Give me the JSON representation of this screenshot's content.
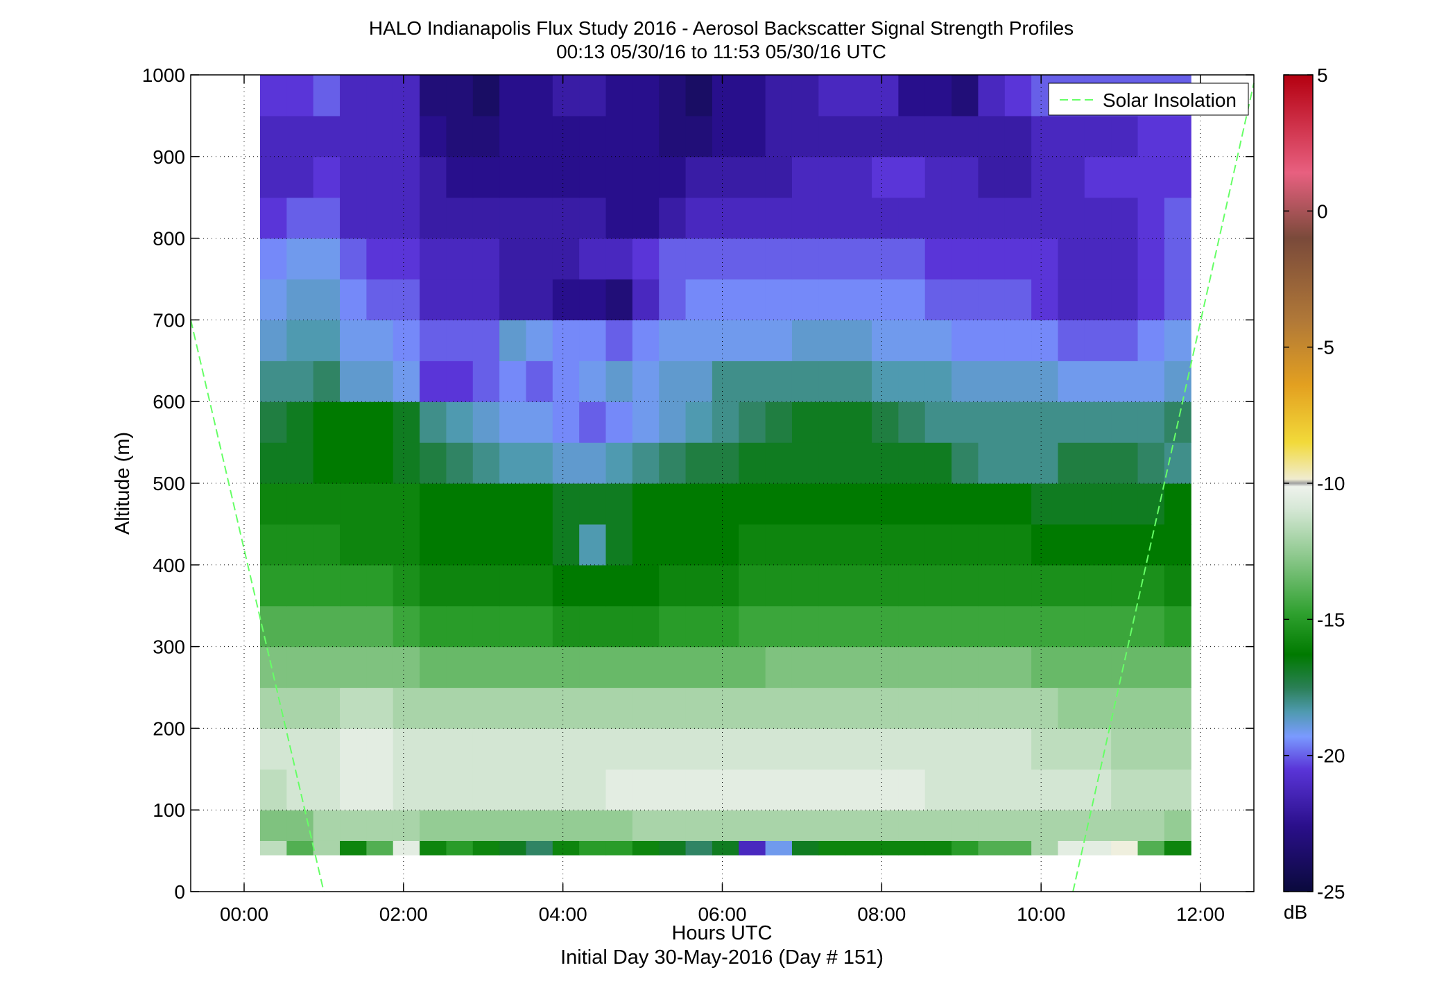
{
  "chart_data": {
    "type": "heatmap",
    "title": "HALO Indianapolis Flux Study 2016 - Aerosol Backscatter Signal Strength Profiles",
    "subtitle": "00:13 05/30/16 to 11:53 05/30/16  UTC",
    "xlabel": "Hours UTC",
    "xlabel2": "Initial Day 30-May-2016 (Day # 151)",
    "ylabel": "Altitude (m)",
    "xlim_hours": [
      -0.67,
      12.67
    ],
    "ylim": [
      0,
      1000
    ],
    "x_ticks": [
      {
        "value": 0,
        "label": "00:00"
      },
      {
        "value": 2,
        "label": "02:00"
      },
      {
        "value": 4,
        "label": "04:00"
      },
      {
        "value": 6,
        "label": "06:00"
      },
      {
        "value": 8,
        "label": "08:00"
      },
      {
        "value": 10,
        "label": "10:00"
      },
      {
        "value": 12,
        "label": "12:00"
      }
    ],
    "y_ticks": [
      0,
      100,
      200,
      300,
      400,
      500,
      600,
      700,
      800,
      900,
      1000
    ],
    "grid": true,
    "data_time_start_hours": 0.2,
    "data_time_end_hours": 11.88,
    "altitude_gates_m": [
      45,
      1000
    ],
    "colorbar": {
      "label": "dB",
      "range": [
        -25,
        5
      ],
      "ticks": [
        5,
        0,
        -5,
        -10,
        -15,
        -20,
        -25
      ]
    },
    "legend": {
      "position": "top-right",
      "entries": [
        {
          "name": "Solar Insolation",
          "style": "dashed",
          "color": "#66ff66"
        }
      ]
    },
    "profiles_db": [
      {
        "altitude_m": 50,
        "values": [
          -11.5,
          -14,
          -12,
          -16,
          -14,
          -10.5,
          -16,
          -15,
          -16,
          -17,
          -18,
          -16,
          -15,
          -15,
          -16,
          -17,
          -18,
          -17,
          -22,
          -20,
          -17,
          -16,
          -16,
          -16,
          -16,
          -16,
          -15,
          -14,
          -14,
          -12,
          -10.5,
          -10.5,
          -10,
          -14,
          -16
        ]
      },
      {
        "altitude_m": 75,
        "values": [
          -13,
          -13,
          -12,
          -12,
          -12,
          -12,
          -12.5,
          -12.5,
          -12.5,
          -12.5,
          -12.5,
          -12.5,
          -12.5,
          -12.5,
          -12,
          -12,
          -12,
          -12,
          -12,
          -12,
          -12,
          -12,
          -12,
          -12,
          -12,
          -12,
          -12,
          -12,
          -12,
          -12,
          -12,
          -12,
          -12,
          -12,
          -12.5
        ]
      },
      {
        "altitude_m": 125,
        "values": [
          -11.5,
          -11,
          -11,
          -10.5,
          -10.5,
          -11,
          -11,
          -11,
          -11,
          -11,
          -11,
          -11,
          -11,
          -10.5,
          -10.5,
          -10.5,
          -10.5,
          -10.5,
          -10.5,
          -10.5,
          -10.5,
          -10.5,
          -10.5,
          -10.5,
          -10.5,
          -11,
          -11,
          -11,
          -11,
          -11,
          -11,
          -11,
          -11.5,
          -11.5,
          -11.5
        ]
      },
      {
        "altitude_m": 175,
        "values": [
          -11,
          -11,
          -11,
          -10.5,
          -10.5,
          -11,
          -11,
          -11,
          -11,
          -11,
          -11,
          -11,
          -11,
          -11,
          -11,
          -11,
          -11,
          -11,
          -11,
          -11,
          -11,
          -11,
          -11,
          -11,
          -11,
          -11,
          -11,
          -11,
          -11,
          -11.5,
          -11.5,
          -11.5,
          -12,
          -12,
          -12
        ]
      },
      {
        "altitude_m": 225,
        "values": [
          -12,
          -12,
          -12,
          -11.5,
          -11.5,
          -12,
          -12,
          -12,
          -12,
          -12,
          -12,
          -12,
          -12,
          -12,
          -12,
          -12,
          -12,
          -12,
          -12,
          -12,
          -12,
          -12,
          -12,
          -12,
          -12,
          -12,
          -12,
          -12,
          -12,
          -12,
          -12.5,
          -12.5,
          -12.5,
          -12.5,
          -12.5
        ]
      },
      {
        "altitude_m": 275,
        "values": [
          -13,
          -13,
          -13,
          -13,
          -13,
          -13,
          -13.5,
          -13.5,
          -13.5,
          -13.5,
          -13.5,
          -13.5,
          -13.5,
          -13.5,
          -13.5,
          -13.5,
          -13.5,
          -13.5,
          -13.5,
          -13,
          -13,
          -13,
          -13,
          -13,
          -13,
          -13,
          -13,
          -13,
          -13,
          -13.5,
          -13.5,
          -13.5,
          -13.5,
          -13.5,
          -13.5
        ]
      },
      {
        "altitude_m": 325,
        "values": [
          -14,
          -14,
          -14,
          -14,
          -14,
          -14.5,
          -15,
          -15,
          -15,
          -15,
          -15,
          -15.5,
          -15.5,
          -15.5,
          -15.5,
          -15,
          -15,
          -15,
          -14.5,
          -14.5,
          -14.5,
          -14.5,
          -14.5,
          -14.5,
          -14.5,
          -14.5,
          -14.5,
          -14.5,
          -14.5,
          -14.5,
          -14.5,
          -14.5,
          -14.5,
          -14.5,
          -15
        ]
      },
      {
        "altitude_m": 375,
        "values": [
          -15,
          -15,
          -15,
          -15,
          -15,
          -15.5,
          -16,
          -16,
          -16,
          -16,
          -16,
          -16.5,
          -16.5,
          -16.5,
          -16.5,
          -16,
          -16,
          -16,
          -15.5,
          -15.5,
          -15.5,
          -15.5,
          -15.5,
          -15.5,
          -15.5,
          -15.5,
          -15.5,
          -15.5,
          -15.5,
          -15.5,
          -15.5,
          -15.5,
          -15.5,
          -15.5,
          -16
        ]
      },
      {
        "altitude_m": 425,
        "values": [
          -15.5,
          -15.5,
          -15.5,
          -16,
          -16,
          -16,
          -16.5,
          -16.5,
          -16.5,
          -16.5,
          -16.5,
          -17,
          -19,
          -17,
          -16.5,
          -16.5,
          -16.5,
          -16.5,
          -16,
          -16,
          -16,
          -16,
          -16,
          -16,
          -16,
          -16,
          -16,
          -16,
          -16,
          -16.5,
          -16.5,
          -16.5,
          -16.5,
          -16.5,
          -16.5
        ]
      },
      {
        "altitude_m": 475,
        "values": [
          -16,
          -16,
          -16,
          -16,
          -16,
          -16,
          -16.5,
          -16.5,
          -16.5,
          -16.5,
          -16.5,
          -17,
          -17,
          -17,
          -16.5,
          -16.5,
          -16.5,
          -16.5,
          -16.5,
          -16.5,
          -16.5,
          -16.5,
          -16.5,
          -16.5,
          -16.5,
          -16.5,
          -16.5,
          -16.5,
          -16.5,
          -17,
          -17,
          -17,
          -17,
          -17,
          -16.5
        ]
      },
      {
        "altitude_m": 525,
        "values": [
          -17,
          -17,
          -16.5,
          -16.5,
          -16.5,
          -17,
          -17.5,
          -18,
          -18.5,
          -19,
          -19,
          -19.5,
          -19.5,
          -19,
          -18.5,
          -18,
          -17.5,
          -17.5,
          -17,
          -17,
          -17,
          -17,
          -17,
          -17,
          -17,
          -17,
          -18,
          -18.5,
          -18.5,
          -18.5,
          -17.5,
          -17.5,
          -17.5,
          -18,
          -18.5
        ]
      },
      {
        "altitude_m": 575,
        "values": [
          -17.5,
          -17,
          -16.5,
          -16.5,
          -16.5,
          -17,
          -18.5,
          -19,
          -19.5,
          -20,
          -20,
          -20.5,
          -21,
          -20.5,
          -20,
          -19.5,
          -19,
          -18.5,
          -18,
          -17.5,
          -17,
          -17,
          -17,
          -17.5,
          -18,
          -18.5,
          -18.5,
          -18.5,
          -18.5,
          -18.5,
          -18.5,
          -18.5,
          -18.5,
          -18.5,
          -18
        ]
      },
      {
        "altitude_m": 625,
        "values": [
          -18.5,
          -18.5,
          -18,
          -19.5,
          -19.5,
          -20,
          -21.5,
          -21.5,
          -21,
          -20.5,
          -21,
          -20.5,
          -20,
          -19.5,
          -20,
          -19.5,
          -19.5,
          -18.5,
          -18.5,
          -18.5,
          -18.5,
          -18.5,
          -18.5,
          -19,
          -19,
          -19,
          -19.5,
          -19.5,
          -19.5,
          -19.5,
          -20,
          -20,
          -20,
          -20,
          -19.5
        ]
      },
      {
        "altitude_m": 675,
        "values": [
          -19.5,
          -19,
          -19,
          -20,
          -20,
          -20.5,
          -21,
          -21,
          -21,
          -19.5,
          -20,
          -20.5,
          -20.5,
          -21,
          -20.5,
          -20,
          -20,
          -20,
          -20,
          -20,
          -19.5,
          -19.5,
          -19.5,
          -20,
          -20,
          -20,
          -20.5,
          -20.5,
          -20.5,
          -20.5,
          -21,
          -21,
          -21,
          -20.5,
          -20
        ]
      },
      {
        "altitude_m": 725,
        "values": [
          -20,
          -19.5,
          -19.5,
          -20.5,
          -21,
          -21,
          -22,
          -22,
          -22,
          -22.5,
          -22.5,
          -23,
          -23,
          -23.5,
          -22,
          -21,
          -20.5,
          -20.5,
          -20.5,
          -20.5,
          -20.5,
          -20.5,
          -20.5,
          -20.5,
          -20.5,
          -21,
          -21,
          -21,
          -21,
          -21.5,
          -22,
          -22,
          -22,
          -21.5,
          -21
        ]
      },
      {
        "altitude_m": 775,
        "values": [
          -20.5,
          -20,
          -20,
          -21,
          -21.5,
          -21.5,
          -22,
          -22,
          -22,
          -22.5,
          -22.5,
          -22.5,
          -22,
          -22,
          -21.5,
          -21,
          -21,
          -21,
          -21,
          -21,
          -21,
          -21,
          -21,
          -21,
          -21,
          -21.5,
          -21.5,
          -21.5,
          -21.5,
          -21.5,
          -22,
          -22,
          -22,
          -21.5,
          -21
        ]
      },
      {
        "altitude_m": 825,
        "values": [
          -21.5,
          -21,
          -21,
          -22,
          -22,
          -22,
          -22.5,
          -22.5,
          -22.5,
          -22.5,
          -22.5,
          -22.5,
          -22.5,
          -23,
          -23,
          -22.5,
          -22,
          -22,
          -22,
          -22,
          -22,
          -22,
          -22,
          -22,
          -22,
          -22,
          -22,
          -22,
          -22,
          -22,
          -22,
          -22,
          -22,
          -21.5,
          -21
        ]
      },
      {
        "altitude_m": 875,
        "values": [
          -22,
          -22,
          -21.5,
          -22,
          -22,
          -22,
          -22.5,
          -23,
          -23,
          -23,
          -23,
          -23,
          -23,
          -23,
          -23,
          -23,
          -22.5,
          -22.5,
          -22.5,
          -22.5,
          -22,
          -22,
          -22,
          -21.5,
          -21.5,
          -22,
          -22,
          -22.5,
          -22.5,
          -22,
          -22,
          -21.5,
          -21.5,
          -21.5,
          -21.5
        ]
      },
      {
        "altitude_m": 925,
        "values": [
          -22,
          -22,
          -22,
          -22,
          -22,
          -22,
          -23,
          -23.5,
          -23.5,
          -23,
          -23,
          -23,
          -23,
          -23,
          -23,
          -23.5,
          -23.5,
          -23,
          -23,
          -22.5,
          -22.5,
          -22.5,
          -22.5,
          -22.5,
          -22.5,
          -22.5,
          -22.5,
          -22.5,
          -22.5,
          -22,
          -22,
          -22,
          -22,
          -21.5,
          -21.5
        ]
      },
      {
        "altitude_m": 975,
        "values": [
          -21.5,
          -21.5,
          -21,
          -22,
          -22,
          -22,
          -23.5,
          -23.5,
          -24,
          -23,
          -23,
          -22.5,
          -22.5,
          -23,
          -23,
          -23.5,
          -24,
          -23,
          -23,
          -22.5,
          -22.5,
          -22,
          -22,
          -22,
          -23,
          -23,
          -23.5,
          -22,
          -21.5,
          -21,
          -21,
          -21,
          -21,
          -21,
          -21
        ]
      }
    ]
  }
}
